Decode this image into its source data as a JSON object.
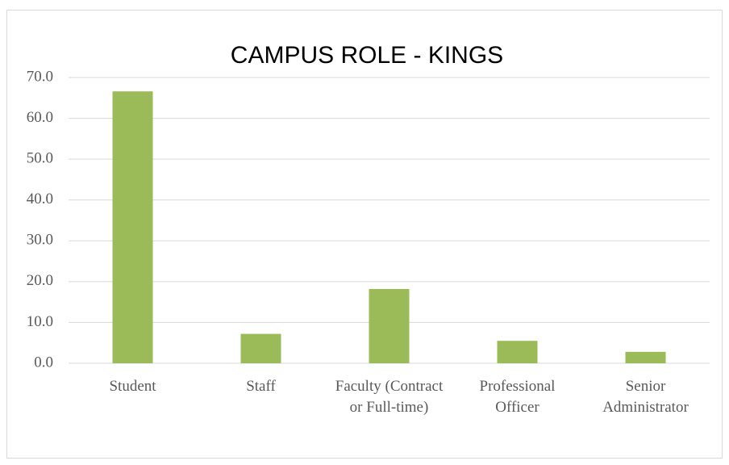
{
  "chart_data": {
    "type": "bar",
    "title": "CAMPUS ROLE - KINGS",
    "categories": [
      "Student",
      "Staff",
      "Faculty (Contract or Full-time)",
      "Professional Officer",
      "Senior Administrator"
    ],
    "values": [
      66.6,
      7.2,
      18.2,
      5.5,
      2.8
    ],
    "color": "#9bbb59",
    "ylim": [
      0,
      70
    ],
    "yticks": [
      {
        "value": 0,
        "label": "0.0"
      },
      {
        "value": 10,
        "label": "10.0"
      },
      {
        "value": 20,
        "label": "20.0"
      },
      {
        "value": 30,
        "label": "30.0"
      },
      {
        "value": 40,
        "label": "40.0"
      },
      {
        "value": 50,
        "label": "50.0"
      },
      {
        "value": 60,
        "label": "60.0"
      },
      {
        "value": 70,
        "label": "70.0"
      }
    ],
    "grid": true
  }
}
